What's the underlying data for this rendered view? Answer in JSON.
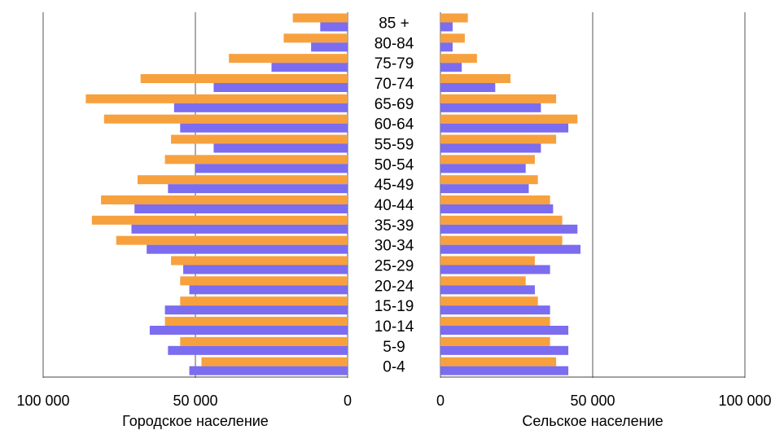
{
  "chart_data": [
    {
      "type": "bar",
      "orientation": "horizontal",
      "side": "left",
      "xlabel": "Городское население",
      "xlim": [
        0,
        100000
      ],
      "xtick_labels": [
        "100 000",
        "50 000",
        "0"
      ],
      "grid": true,
      "categories": [
        "85 +",
        "80-84",
        "75-79",
        "70-74",
        "65-69",
        "60-64",
        "55-59",
        "50-54",
        "45-49",
        "40-44",
        "35-39",
        "30-34",
        "25-29",
        "20-24",
        "15-19",
        "10-14",
        "5-9",
        "0-4"
      ],
      "series": [
        {
          "color": "#f7a13e",
          "values": [
            18000,
            21000,
            39000,
            68000,
            86000,
            80000,
            58000,
            60000,
            69000,
            81000,
            84000,
            76000,
            58000,
            55000,
            55000,
            60000,
            55000,
            48000
          ]
        },
        {
          "color": "#7b6cf0",
          "values": [
            9000,
            12000,
            25000,
            44000,
            57000,
            55000,
            44000,
            50000,
            59000,
            70000,
            71000,
            66000,
            54000,
            52000,
            60000,
            65000,
            59000,
            52000
          ]
        }
      ]
    },
    {
      "type": "bar",
      "orientation": "horizontal",
      "side": "right",
      "xlabel": "Сельское население",
      "xlim": [
        0,
        100000
      ],
      "xtick_labels": [
        "0",
        "50 000",
        "100 000"
      ],
      "grid": true,
      "categories": [
        "85 +",
        "80-84",
        "75-79",
        "70-74",
        "65-69",
        "60-64",
        "55-59",
        "50-54",
        "45-49",
        "40-44",
        "35-39",
        "30-34",
        "25-29",
        "20-24",
        "15-19",
        "10-14",
        "5-9",
        "0-4"
      ],
      "series": [
        {
          "color": "#f7a13e",
          "values": [
            9000,
            8000,
            12000,
            23000,
            38000,
            45000,
            38000,
            31000,
            32000,
            36000,
            40000,
            40000,
            31000,
            28000,
            32000,
            36000,
            36000,
            38000
          ]
        },
        {
          "color": "#7b6cf0",
          "values": [
            4000,
            4000,
            7000,
            18000,
            33000,
            42000,
            33000,
            28000,
            29000,
            37000,
            45000,
            46000,
            36000,
            31000,
            36000,
            42000,
            42000,
            42000
          ]
        }
      ]
    }
  ]
}
